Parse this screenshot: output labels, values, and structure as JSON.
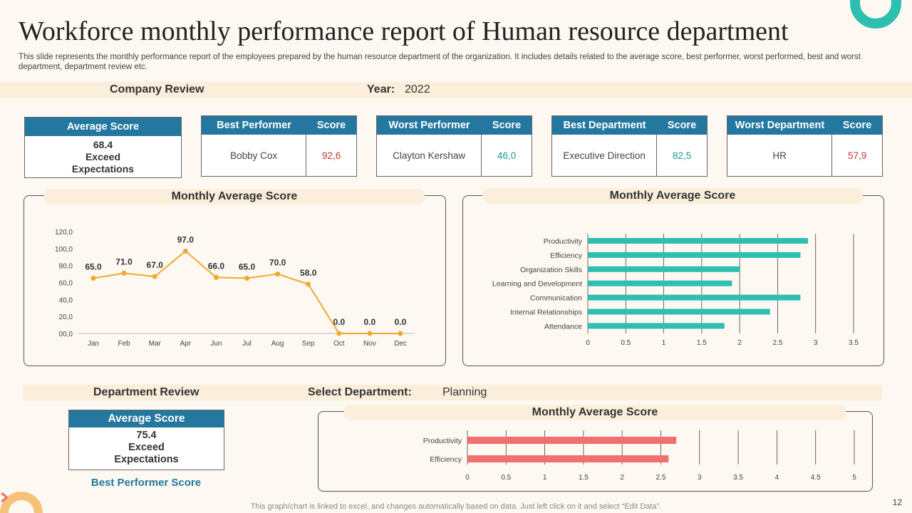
{
  "title": "Workforce monthly performance report of Human resource department",
  "subtitle": "This slide represents the monthly performance report of the employees prepared by the human resource department of the organization. It includes details related to the average score, best performer, worst performed, best and worst department, department review etc.",
  "company_review": {
    "label": "Company Review",
    "year_label": "Year:",
    "year_value": "2022"
  },
  "cards": {
    "average": {
      "header": "Average Score",
      "score": "68.4",
      "line1": "Exceed",
      "line2": "Expectations"
    },
    "best_performer": {
      "header": "Best Performer",
      "score_header": "Score",
      "name": "Bobby Cox",
      "score": "92,6",
      "color": "#c0392b"
    },
    "worst_performer": {
      "header": "Worst Performer",
      "score_header": "Score",
      "name": "Clayton Kershaw",
      "score": "46,0",
      "color": "#1a9a9a"
    },
    "best_department": {
      "header": "Best Department",
      "score_header": "Score",
      "name": "Executive Direction",
      "score": "82,5",
      "color": "#1a9a9a"
    },
    "worst_department": {
      "header": "Worst Department",
      "score_header": "Score",
      "name": "HR",
      "score": "57,9",
      "color": "#c0392b"
    }
  },
  "department_review": {
    "label": "Department Review",
    "select_label": "Select Department:",
    "select_value": "Planning"
  },
  "dept_card": {
    "header": "Average Score",
    "score": "75.4",
    "line1": "Exceed",
    "line2": "Expectations",
    "link": "Best Performer Score"
  },
  "chart_data": [
    {
      "type": "line",
      "title": "Monthly Average Score",
      "categories": [
        "Jan",
        "Feb",
        "Mar",
        "Apr",
        "Jun",
        "Jul",
        "Aug",
        "Sep",
        "Oct",
        "Nov",
        "Dec"
      ],
      "values": [
        65.0,
        71.0,
        67.0,
        97.0,
        66.0,
        65.0,
        70.0,
        58.0,
        0.0,
        0.0,
        0.0
      ],
      "data_labels": [
        "65.0",
        "71.0",
        "67.0",
        "97.0",
        "66.0",
        "65.0",
        "70.0",
        "58.0",
        "0.0",
        "0.0",
        "0.0"
      ],
      "ylim": [
        0,
        120
      ],
      "yticks": [
        "00,0",
        "20,0",
        "40,0",
        "60,0",
        "80,0",
        "100,0",
        "120,0"
      ],
      "color": "#f0a830"
    },
    {
      "type": "bar",
      "orientation": "horizontal",
      "title": "Monthly Average Score",
      "categories": [
        "Productivity",
        "Efficiency",
        "Organization Skills",
        "Learning and Development",
        "Communication",
        "Internal Relationships",
        "Attendance"
      ],
      "values": [
        2.9,
        2.8,
        2.0,
        1.9,
        2.8,
        2.4,
        1.8
      ],
      "xlim": [
        0,
        3.5
      ],
      "xticks": [
        "0",
        "0.5",
        "1",
        "1.5",
        "2",
        "2.5",
        "3",
        "3.5"
      ],
      "color": "#2ebfb0"
    },
    {
      "type": "bar",
      "orientation": "horizontal",
      "title": "Monthly Average Score",
      "categories": [
        "Productivity",
        "Efficiency"
      ],
      "values": [
        2.7,
        2.6
      ],
      "xlim": [
        0,
        5
      ],
      "xticks": [
        "0",
        "0.5",
        "1",
        "1.5",
        "2",
        "2.5",
        "3",
        "3.5",
        "4",
        "4.5",
        "5"
      ],
      "color": "#f07070"
    }
  ],
  "footer": "This graph/chart is linked to excel, and changes automatically based on data. Just left click on it and select “Edit Data”.",
  "page_number": "12"
}
